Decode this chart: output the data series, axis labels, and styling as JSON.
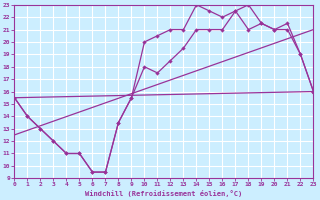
{
  "xlabel": "Windchill (Refroidissement éolien,°C)",
  "xlim": [
    0,
    23
  ],
  "ylim": [
    9,
    23
  ],
  "xticks": [
    0,
    1,
    2,
    3,
    4,
    5,
    6,
    7,
    8,
    9,
    10,
    11,
    12,
    13,
    14,
    15,
    16,
    17,
    18,
    19,
    20,
    21,
    22,
    23
  ],
  "yticks": [
    9,
    10,
    11,
    12,
    13,
    14,
    15,
    16,
    17,
    18,
    19,
    20,
    21,
    22,
    23
  ],
  "background_color": "#cceeff",
  "line_color": "#993399",
  "grid_color": "#ffffff",
  "line1_x": [
    0,
    1,
    2,
    3,
    4,
    5,
    6,
    7,
    8,
    9,
    10,
    11,
    12,
    13,
    14,
    15,
    16,
    17,
    18,
    19,
    20,
    21,
    22,
    23
  ],
  "line1_y": [
    15.5,
    14.0,
    13.0,
    12.0,
    11.0,
    11.0,
    9.5,
    9.5,
    13.5,
    15.5,
    18.0,
    17.5,
    18.5,
    19.5,
    21.0,
    21.0,
    21.0,
    22.5,
    23.0,
    21.5,
    21.0,
    21.0,
    19.0,
    16.0
  ],
  "line2_x": [
    0,
    1,
    2,
    3,
    4,
    5,
    6,
    7,
    8,
    9,
    10,
    11,
    12,
    13,
    14,
    15,
    16,
    17,
    18,
    19,
    20,
    21,
    22,
    23
  ],
  "line2_y": [
    15.5,
    14.0,
    13.0,
    12.0,
    11.0,
    11.0,
    9.5,
    9.5,
    13.5,
    15.5,
    20.0,
    20.5,
    21.0,
    21.0,
    23.0,
    22.5,
    22.0,
    22.5,
    21.0,
    21.5,
    21.0,
    21.5,
    19.0,
    16.0
  ],
  "line3_x": [
    0,
    23
  ],
  "line3_y": [
    15.5,
    16.0
  ],
  "line4_x": [
    0,
    23
  ],
  "line4_y": [
    12.5,
    21.0
  ]
}
